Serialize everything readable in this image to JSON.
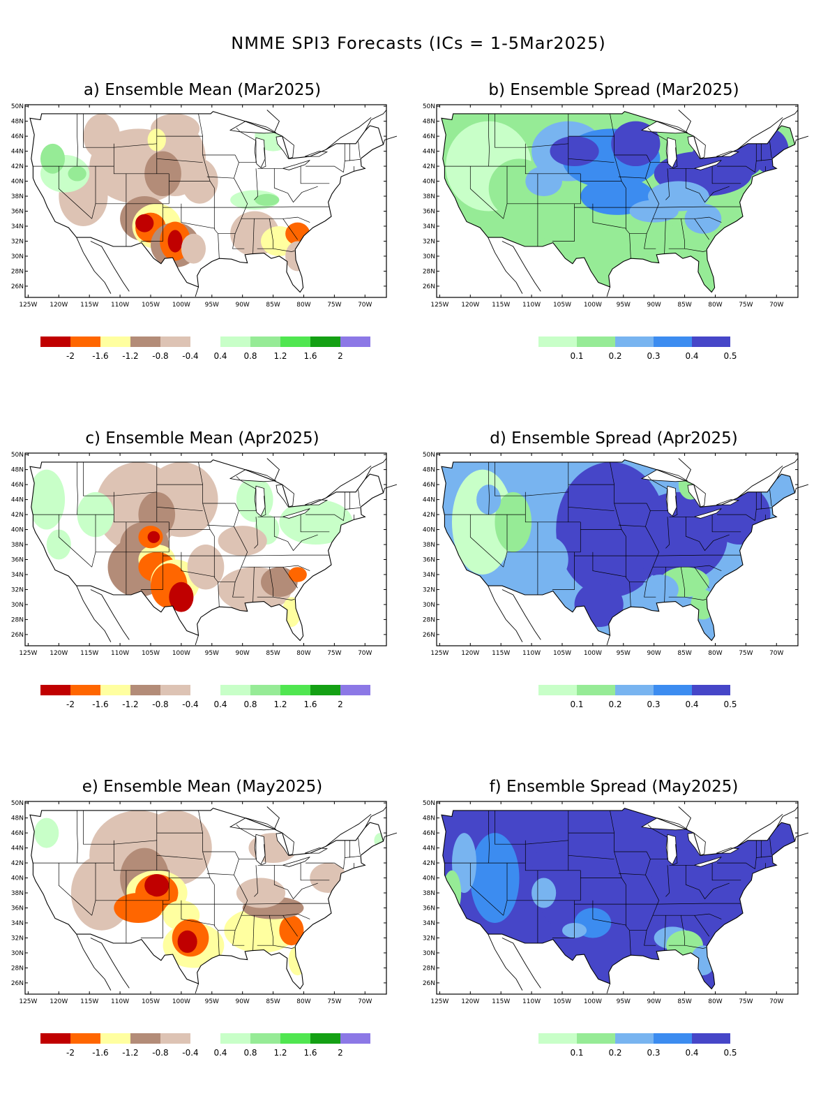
{
  "title": "NMME SPI3 Forecasts (ICs = 1-5Mar2025)",
  "panels": [
    {
      "id": "a",
      "title": "a) Ensemble Mean (Mar2025)",
      "kind": "mean"
    },
    {
      "id": "b",
      "title": "b) Ensemble Spread (Mar2025)",
      "kind": "spread"
    },
    {
      "id": "c",
      "title": "c) Ensemble Mean (Apr2025)",
      "kind": "mean"
    },
    {
      "id": "d",
      "title": "d) Ensemble Spread (Apr2025)",
      "kind": "spread"
    },
    {
      "id": "e",
      "title": "e) Ensemble Mean (May2025)",
      "kind": "mean"
    },
    {
      "id": "f",
      "title": "f) Ensemble Spread (May2025)",
      "kind": "spread"
    }
  ],
  "axes": {
    "lon_labels": [
      "125W",
      "120W",
      "115W",
      "110W",
      "105W",
      "100W",
      "95W",
      "90W",
      "85W",
      "80W",
      "75W",
      "70W"
    ],
    "lat_labels": [
      "50N",
      "48N",
      "46N",
      "44N",
      "42N",
      "40N",
      "38N",
      "36N",
      "34N",
      "32N",
      "30N",
      "28N",
      "26N"
    ]
  },
  "legend_mean": {
    "colors": [
      "#c00000",
      "#ff6600",
      "#ffffa0",
      "#b38c78",
      "#ddc3b4",
      "#ffffff",
      "#c8ffc8",
      "#96eb96",
      "#50e650",
      "#14a014",
      "#8c78e6"
    ],
    "labels": [
      "-2",
      "-1.6",
      "-1.2",
      "-0.8",
      "-0.4",
      "0.4",
      "0.8",
      "1.2",
      "1.6",
      "2"
    ]
  },
  "legend_spread": {
    "colors": [
      "#c8ffc8",
      "#96eb96",
      "#78b4f0",
      "#3c8cf0",
      "#4646c8"
    ],
    "labels": [
      "0.1",
      "0.2",
      "0.3",
      "0.4",
      "0.5"
    ]
  }
}
